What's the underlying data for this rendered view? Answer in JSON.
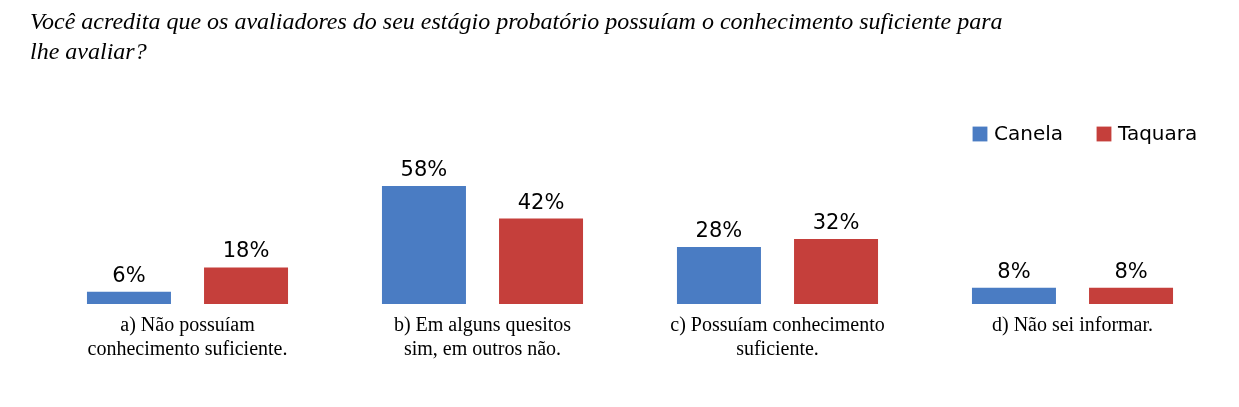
{
  "chart_data": {
    "type": "bar",
    "title": "Você acredita que os avaliadores do seu estágio probatório possuíam o conhecimento suficiente para lhe avaliar?",
    "categories": [
      "a) Não possuíam conhecimento suficiente.",
      "b) Em alguns quesitos sim, em outros não.",
      "c) Possuíam conhecimento suficiente.",
      "d) Não sei informar."
    ],
    "series": [
      {
        "name": "Canela",
        "color": "#4a7cc3",
        "values": [
          6,
          58,
          28,
          8
        ],
        "value_labels": [
          "6%",
          "58%",
          "28%",
          "8%"
        ]
      },
      {
        "name": "Taquara",
        "color": "#c53f3b",
        "values": [
          18,
          42,
          32,
          8
        ],
        "value_labels": [
          "18%",
          "42%",
          "32%",
          "8%"
        ]
      }
    ],
    "legend": "top right"
  }
}
